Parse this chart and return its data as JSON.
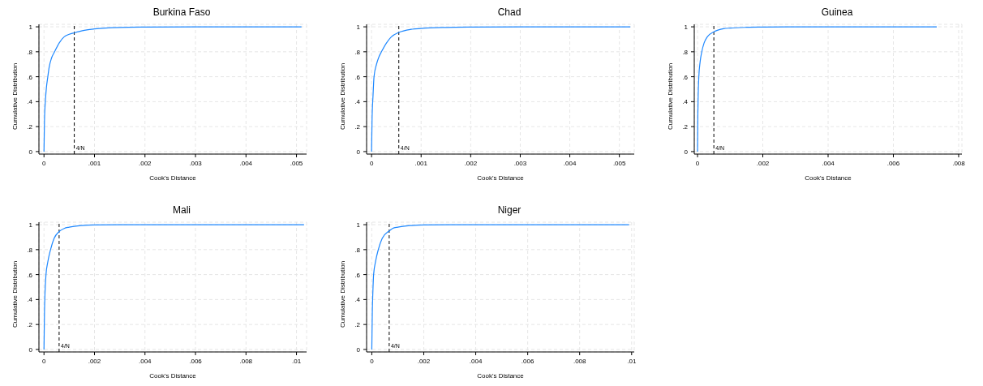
{
  "chart_data": [
    {
      "type": "line",
      "title": "Burkina Faso",
      "xlabel": "Cook's Distance",
      "ylabel": "Cumulative Distribution",
      "color": "#1e88ff",
      "grid": true,
      "x": [
        0,
        1e-05,
        3e-05,
        5e-05,
        7.6e-05,
        0.0001,
        0.00015,
        0.00021,
        0.0003,
        0.0004,
        0.0005,
        0.0006,
        0.0008,
        0.001,
        0.0015,
        0.002,
        0.003,
        0.0051
      ],
      "values": [
        0,
        0.25,
        0.42,
        0.52,
        0.6,
        0.67,
        0.75,
        0.8,
        0.87,
        0.92,
        0.94,
        0.952,
        0.972,
        0.983,
        0.995,
        0.998,
        1,
        1
      ],
      "xlim": [
        -0.0001,
        0.0052
      ],
      "xticks": [
        {
          "value": 0,
          "label": "0"
        },
        {
          "value": 0.001,
          "label": ".001"
        },
        {
          "value": 0.002,
          "label": ".002"
        },
        {
          "value": 0.003,
          "label": ".003"
        },
        {
          "value": 0.004,
          "label": ".004"
        },
        {
          "value": 0.005,
          "label": ".005"
        }
      ],
      "ylim": [
        -0.02,
        1.02
      ],
      "yticks": [
        {
          "value": 0,
          "label": "0"
        },
        {
          "value": 0.2,
          "label": ".2"
        },
        {
          "value": 0.4,
          "label": ".4"
        },
        {
          "value": 0.6,
          "label": ".6"
        },
        {
          "value": 0.8,
          "label": ".8"
        },
        {
          "value": 1,
          "label": "1"
        }
      ],
      "ref_lines": [
        {
          "axis": "x",
          "value": 0.0006,
          "label": "4/N",
          "color": "#000000",
          "line_style": "dashed"
        }
      ]
    },
    {
      "type": "line",
      "title": "Chad",
      "xlabel": "Cook's Distance",
      "ylabel": "Cumulative Distribution",
      "color": "#1e88ff",
      "grid": true,
      "x": [
        0,
        1e-05,
        3e-05,
        5e-05,
        0.0001,
        0.00015,
        0.0002,
        0.0003,
        0.0004,
        0.00055,
        0.0008,
        0.001,
        0.0015,
        0.002,
        0.003,
        0.00522
      ],
      "values": [
        0,
        0.25,
        0.45,
        0.6,
        0.7,
        0.76,
        0.8,
        0.87,
        0.92,
        0.955,
        0.98,
        0.987,
        0.995,
        0.998,
        1,
        1
      ],
      "xlim": [
        -0.0001,
        0.0053
      ],
      "xticks": [
        {
          "value": 0,
          "label": "0"
        },
        {
          "value": 0.001,
          "label": ".001"
        },
        {
          "value": 0.002,
          "label": ".002"
        },
        {
          "value": 0.003,
          "label": ".003"
        },
        {
          "value": 0.004,
          "label": ".004"
        },
        {
          "value": 0.005,
          "label": ".005"
        }
      ],
      "ylim": [
        -0.02,
        1.02
      ],
      "yticks": [
        {
          "value": 0,
          "label": "0"
        },
        {
          "value": 0.2,
          "label": ".2"
        },
        {
          "value": 0.4,
          "label": ".4"
        },
        {
          "value": 0.6,
          "label": ".6"
        },
        {
          "value": 0.8,
          "label": ".8"
        },
        {
          "value": 1,
          "label": "1"
        }
      ],
      "ref_lines": [
        {
          "axis": "x",
          "value": 0.00055,
          "label": "4/N",
          "color": "#000000",
          "line_style": "dashed"
        }
      ]
    },
    {
      "type": "line",
      "title": "Guinea",
      "xlabel": "Cook's Distance",
      "ylabel": "Cumulative Distribution",
      "color": "#1e88ff",
      "grid": true,
      "x": [
        0,
        1e-05,
        2e-05,
        4e-05,
        8e-05,
        0.00013,
        0.0002,
        0.0003,
        0.0005,
        0.0008,
        0.001,
        0.0015,
        0.002,
        0.003,
        0.00733
      ],
      "values": [
        0,
        0.3,
        0.45,
        0.6,
        0.72,
        0.8,
        0.87,
        0.92,
        0.96,
        0.985,
        0.99,
        0.996,
        0.998,
        1,
        1
      ],
      "xlim": [
        -0.0001,
        0.0081
      ],
      "xticks": [
        {
          "value": 0,
          "label": "0"
        },
        {
          "value": 0.002,
          "label": ".002"
        },
        {
          "value": 0.004,
          "label": ".004"
        },
        {
          "value": 0.006,
          "label": ".006"
        },
        {
          "value": 0.008,
          "label": ".008"
        }
      ],
      "ylim": [
        -0.02,
        1.02
      ],
      "yticks": [
        {
          "value": 0,
          "label": "0"
        },
        {
          "value": 0.2,
          "label": ".2"
        },
        {
          "value": 0.4,
          "label": ".4"
        },
        {
          "value": 0.6,
          "label": ".6"
        },
        {
          "value": 0.8,
          "label": ".8"
        },
        {
          "value": 1,
          "label": "1"
        }
      ],
      "ref_lines": [
        {
          "axis": "x",
          "value": 0.0005,
          "label": "4/N",
          "color": "#000000",
          "line_style": "dashed"
        }
      ]
    },
    {
      "type": "line",
      "title": "Mali",
      "xlabel": "Cook's Distance",
      "ylabel": "Cumulative Distribution",
      "color": "#1e88ff",
      "grid": true,
      "x": [
        0,
        2e-05,
        4e-05,
        8e-05,
        0.00015,
        0.00026,
        0.0004,
        0.0006,
        0.0008,
        0.001,
        0.0015,
        0.002,
        0.003,
        0.0103
      ],
      "values": [
        0,
        0.3,
        0.45,
        0.6,
        0.7,
        0.8,
        0.89,
        0.945,
        0.97,
        0.98,
        0.993,
        0.998,
        1,
        1
      ],
      "xlim": [
        -0.0002,
        0.0104
      ],
      "xticks": [
        {
          "value": 0,
          "label": "0"
        },
        {
          "value": 0.002,
          "label": ".002"
        },
        {
          "value": 0.004,
          "label": ".004"
        },
        {
          "value": 0.006,
          "label": ".006"
        },
        {
          "value": 0.008,
          "label": ".008"
        },
        {
          "value": 0.01,
          "label": ".01"
        }
      ],
      "ylim": [
        -0.02,
        1.02
      ],
      "yticks": [
        {
          "value": 0,
          "label": "0"
        },
        {
          "value": 0.2,
          "label": ".2"
        },
        {
          "value": 0.4,
          "label": ".4"
        },
        {
          "value": 0.6,
          "label": ".6"
        },
        {
          "value": 0.8,
          "label": ".8"
        },
        {
          "value": 1,
          "label": "1"
        }
      ],
      "ref_lines": [
        {
          "axis": "x",
          "value": 0.0006,
          "label": "4/N",
          "color": "#000000",
          "line_style": "dashed"
        }
      ]
    },
    {
      "type": "line",
      "title": "Niger",
      "xlabel": "Cook's Distance",
      "ylabel": "Cumulative Distribution",
      "color": "#1e88ff",
      "grid": true,
      "x": [
        0,
        2e-05,
        4e-05,
        7e-05,
        0.00015,
        0.00025,
        0.0004,
        0.00067,
        0.0008,
        0.001,
        0.0015,
        0.002,
        0.003,
        0.0099
      ],
      "values": [
        0,
        0.3,
        0.45,
        0.6,
        0.71,
        0.8,
        0.89,
        0.95,
        0.97,
        0.98,
        0.993,
        0.998,
        1,
        1
      ],
      "xlim": [
        -0.0002,
        0.0101
      ],
      "xticks": [
        {
          "value": 0,
          "label": "0"
        },
        {
          "value": 0.002,
          "label": ".002"
        },
        {
          "value": 0.004,
          "label": ".004"
        },
        {
          "value": 0.006,
          "label": ".006"
        },
        {
          "value": 0.008,
          "label": ".008"
        },
        {
          "value": 0.01,
          "label": ".01"
        }
      ],
      "ylim": [
        -0.02,
        1.02
      ],
      "yticks": [
        {
          "value": 0,
          "label": "0"
        },
        {
          "value": 0.2,
          "label": ".2"
        },
        {
          "value": 0.4,
          "label": ".4"
        },
        {
          "value": 0.6,
          "label": ".6"
        },
        {
          "value": 0.8,
          "label": ".8"
        },
        {
          "value": 1,
          "label": "1"
        }
      ],
      "ref_lines": [
        {
          "axis": "x",
          "value": 0.00067,
          "label": "4/N",
          "color": "#000000",
          "line_style": "dashed"
        }
      ]
    }
  ]
}
